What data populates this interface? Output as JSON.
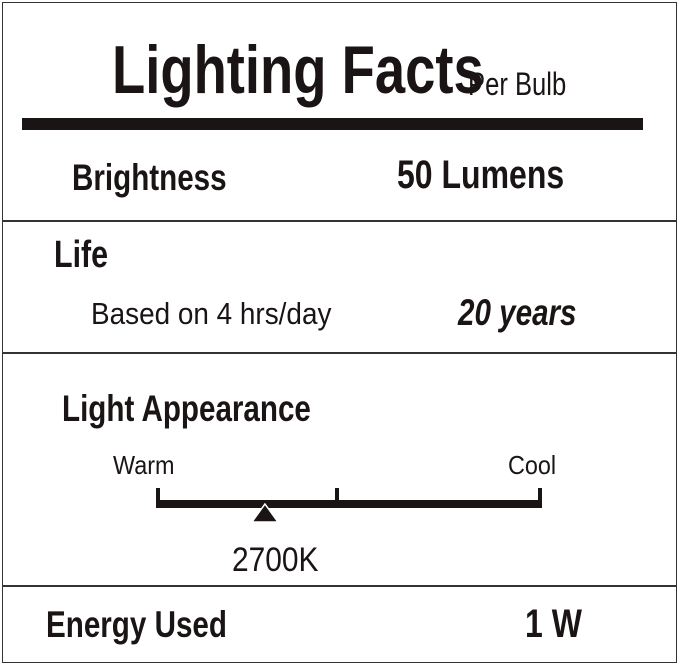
{
  "header": {
    "title": "Lighting Facts",
    "subtitle": "Per Bulb"
  },
  "brightness": {
    "label": "Brightness",
    "value": "50 Lumens"
  },
  "life": {
    "label": "Life",
    "note": "Based on 4 hrs/day",
    "value": "20 years"
  },
  "appearance": {
    "label": "Light Appearance",
    "scale_left": "Warm",
    "scale_right": "Cool",
    "marker_value": "2700K",
    "marker_position": 0.28
  },
  "energy": {
    "label": "Energy Used",
    "value": "1 W"
  },
  "colors": {
    "ink": "#1a1414",
    "background": "#ffffff"
  }
}
